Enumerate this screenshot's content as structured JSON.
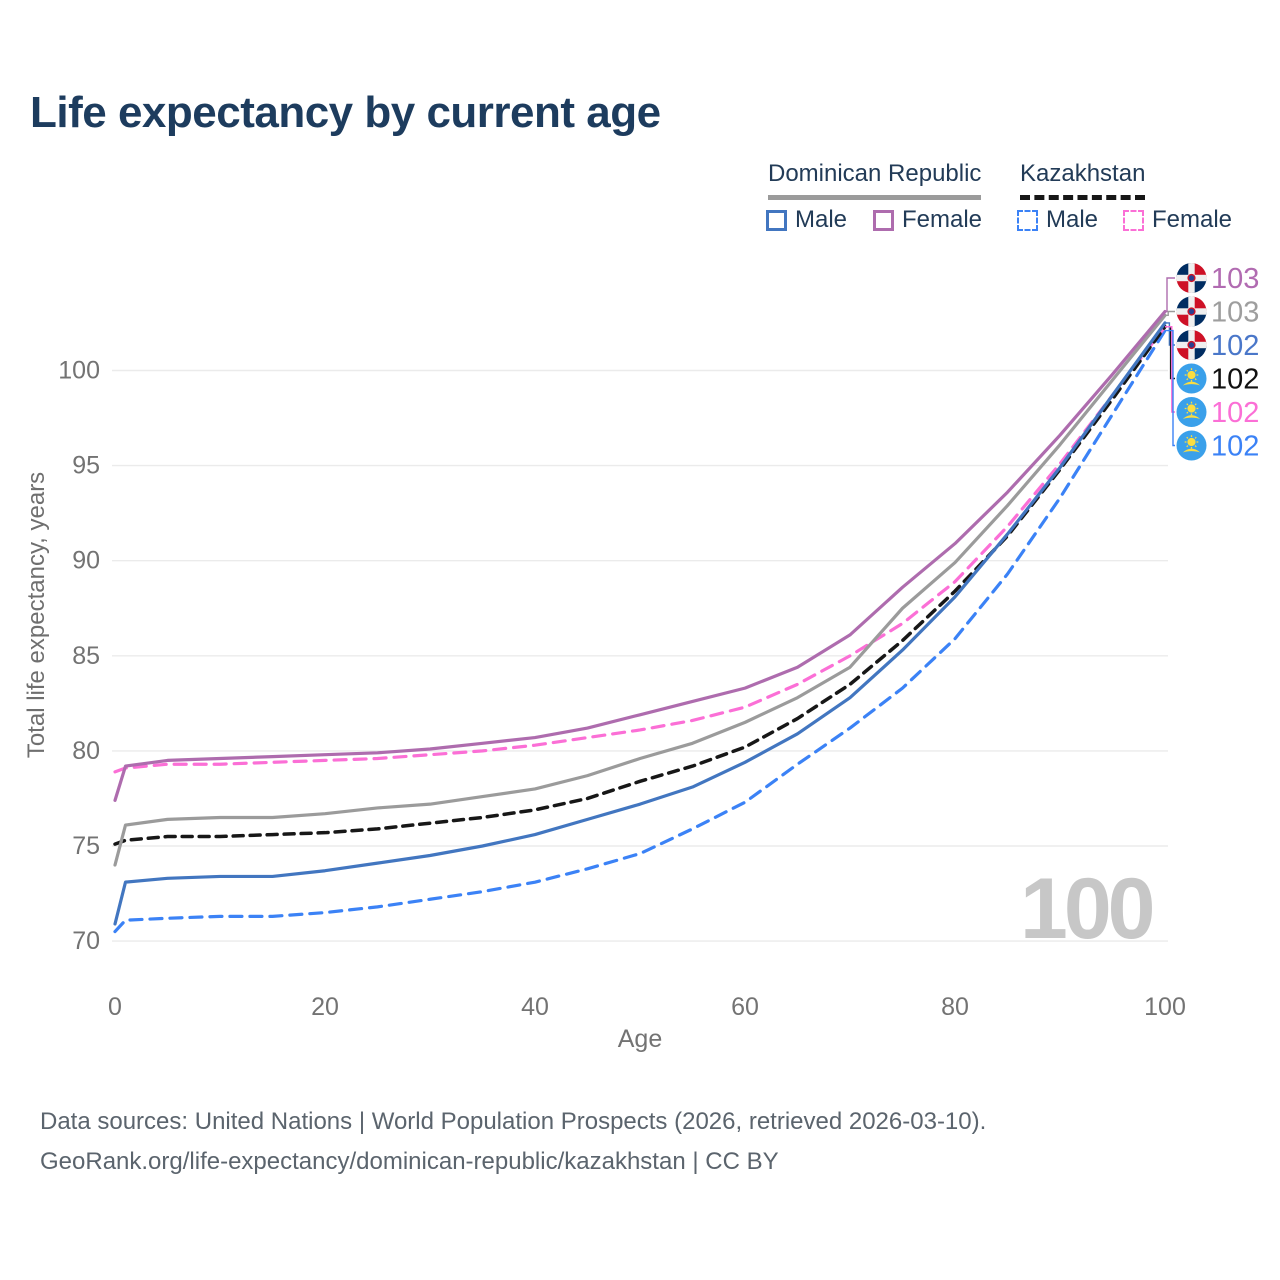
{
  "title": "Life expectancy by current age",
  "legend": {
    "groups": [
      {
        "label": "Dominican Republic",
        "line_style": "solid",
        "rule_color": "#9b9b9b",
        "items": [
          {
            "label": "Male",
            "color": "#4276c0",
            "dash": false
          },
          {
            "label": "Female",
            "color": "#ae6cae",
            "dash": false
          }
        ]
      },
      {
        "label": "Kazakhstan",
        "line_style": "dashed",
        "rule_color": "#171717",
        "items": [
          {
            "label": "Male",
            "color": "#3b82f6",
            "dash": true
          },
          {
            "label": "Female",
            "color": "#fb6fd6",
            "dash": true
          }
        ]
      }
    ]
  },
  "watermark": "100",
  "chart_data": {
    "type": "line",
    "title": "Life expectancy by current age",
    "xlabel": "Age",
    "ylabel": "Total life expectancy, years",
    "xlim": [
      0,
      100
    ],
    "ylim": [
      68.5,
      103.5
    ],
    "xticks": [
      0,
      20,
      40,
      60,
      80,
      100
    ],
    "yticks": [
      70,
      75,
      80,
      85,
      90,
      95,
      100
    ],
    "grid": "horizontal",
    "legend_position": "top-right",
    "ages": [
      0,
      1,
      5,
      10,
      15,
      20,
      25,
      30,
      35,
      40,
      45,
      50,
      55,
      60,
      65,
      70,
      75,
      80,
      85,
      90,
      95,
      100
    ],
    "series": [
      {
        "id": "dominican-republic-female",
        "name": "Dominican Republic Female",
        "country": "Dominican Republic",
        "sex": "Female",
        "color": "#ae6cae",
        "label_color": "#b16bb1",
        "dash": "solid",
        "flag": "dominican-republic",
        "end_label": "103",
        "values": [
          77.4,
          79.2,
          79.5,
          79.6,
          79.7,
          79.8,
          79.9,
          80.1,
          80.4,
          80.7,
          81.2,
          81.9,
          82.6,
          83.3,
          84.4,
          86.1,
          88.6,
          90.9,
          93.6,
          96.6,
          99.8,
          103.1
        ]
      },
      {
        "id": "dominican-republic-total",
        "name": "Dominican Republic Both sexes",
        "country": "Dominican Republic",
        "sex": "Both",
        "color": "#9b9b9b",
        "label_color": "#9e9e9e",
        "dash": "solid",
        "flag": "dominican-republic",
        "end_label": "103",
        "values": [
          74.0,
          76.1,
          76.4,
          76.5,
          76.5,
          76.7,
          77.0,
          77.2,
          77.6,
          78.0,
          78.7,
          79.6,
          80.4,
          81.5,
          82.8,
          84.4,
          87.5,
          89.9,
          92.9,
          96.1,
          99.5,
          102.9
        ]
      },
      {
        "id": "dominican-republic-male",
        "name": "Dominican Republic Male",
        "country": "Dominican Republic",
        "sex": "Male",
        "color": "#4276c0",
        "label_color": "#4a77c9",
        "dash": "solid",
        "flag": "dominican-republic",
        "end_label": "102",
        "values": [
          70.9,
          73.1,
          73.3,
          73.4,
          73.4,
          73.7,
          74.1,
          74.5,
          75.0,
          75.6,
          76.4,
          77.2,
          78.1,
          79.4,
          80.9,
          82.8,
          85.3,
          88.1,
          91.4,
          94.9,
          98.7,
          102.5
        ]
      },
      {
        "id": "kazakhstan-total",
        "name": "Kazakhstan Both sexes",
        "country": "Kazakhstan",
        "sex": "Both",
        "color": "#171717",
        "label_color": "#111111",
        "dash": "dashed",
        "flag": "kazakhstan",
        "end_label": "102",
        "values": [
          75.1,
          75.3,
          75.5,
          75.5,
          75.6,
          75.7,
          75.9,
          76.2,
          76.5,
          76.9,
          77.5,
          78.4,
          79.2,
          80.2,
          81.7,
          83.5,
          85.8,
          88.4,
          91.3,
          94.8,
          98.5,
          102.3
        ]
      },
      {
        "id": "kazakhstan-female",
        "name": "Kazakhstan Female",
        "country": "Kazakhstan",
        "sex": "Female",
        "color": "#fb6fd6",
        "label_color": "#fb6fd6",
        "dash": "dashed",
        "flag": "kazakhstan",
        "end_label": "102",
        "values": [
          78.9,
          79.1,
          79.3,
          79.3,
          79.4,
          79.5,
          79.6,
          79.8,
          80.0,
          80.3,
          80.7,
          81.1,
          81.6,
          82.3,
          83.5,
          85.0,
          86.7,
          88.9,
          91.8,
          95.1,
          98.7,
          102.3
        ]
      },
      {
        "id": "kazakhstan-male",
        "name": "Kazakhstan Male",
        "country": "Kazakhstan",
        "sex": "Male",
        "color": "#3b82f6",
        "label_color": "#3b82f6",
        "dash": "dashed",
        "flag": "kazakhstan",
        "end_label": "102",
        "values": [
          70.5,
          71.1,
          71.2,
          71.3,
          71.3,
          71.5,
          71.8,
          72.2,
          72.6,
          73.1,
          73.8,
          74.6,
          75.9,
          77.3,
          79.3,
          81.2,
          83.3,
          85.9,
          89.3,
          93.3,
          97.7,
          102.1
        ]
      }
    ]
  },
  "flag_colors": {
    "dominican_blue": "#002d62",
    "dominican_red": "#ce1126",
    "kazakhstan_blue": "#3aa0ea",
    "kazakhstan_yellow": "#fcdd3f"
  },
  "footer": {
    "line1": "Data sources: United Nations | World Population Prospects (2026, retrieved 2026-03-10).",
    "line2": "GeoRank.org/life-expectancy/dominican-republic/kazakhstan | CC BY"
  }
}
